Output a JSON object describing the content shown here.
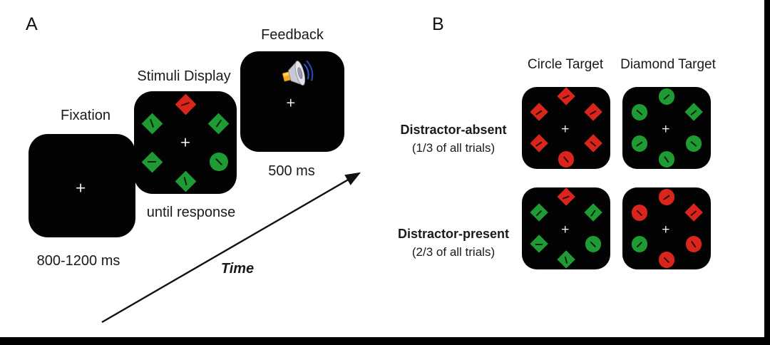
{
  "colors": {
    "red": "#da251d",
    "green": "#1f9b34"
  },
  "cross": "+",
  "panel_a": {
    "label": "A",
    "fixation": {
      "title": "Fixation",
      "caption": "800-1200 ms"
    },
    "stimuli": {
      "title": "Stimuli Display",
      "caption": "until response"
    },
    "feedback": {
      "title": "Feedback",
      "caption": "500 ms"
    },
    "time_label": "Time"
  },
  "panel_b": {
    "label": "B",
    "columns": [
      "Circle Target",
      "Diamond Target"
    ],
    "rows": [
      {
        "label": "Distractor-absent",
        "sublabel": "(1/3 of all trials)"
      },
      {
        "label": "Distractor-present",
        "sublabel": "(2/3 of all trials)"
      }
    ]
  },
  "displays": {
    "a_stimuli": [
      {
        "pos": "top",
        "shape": "diamond",
        "color": "red",
        "tilt": -20
      },
      {
        "pos": "ul",
        "shape": "diamond",
        "color": "green",
        "tilt": 70
      },
      {
        "pos": "ur",
        "shape": "diamond",
        "color": "green",
        "tilt": -55
      },
      {
        "pos": "ll",
        "shape": "diamond",
        "color": "green",
        "tilt": 0
      },
      {
        "pos": "lr",
        "shape": "circle",
        "color": "green",
        "tilt": 45
      },
      {
        "pos": "bottom",
        "shape": "diamond",
        "color": "green",
        "tilt": 75
      }
    ],
    "b_circle_absent": [
      {
        "pos": "top",
        "shape": "diamond",
        "color": "red",
        "tilt": -25
      },
      {
        "pos": "ul",
        "shape": "diamond",
        "color": "red",
        "tilt": -35
      },
      {
        "pos": "ur",
        "shape": "diamond",
        "color": "red",
        "tilt": -30
      },
      {
        "pos": "ll",
        "shape": "diamond",
        "color": "red",
        "tilt": -35
      },
      {
        "pos": "lr",
        "shape": "diamond",
        "color": "red",
        "tilt": 40
      },
      {
        "pos": "bottom",
        "shape": "circle",
        "color": "red",
        "tilt": 50
      }
    ],
    "b_diamond_absent": [
      {
        "pos": "top",
        "shape": "circle",
        "color": "green",
        "tilt": -40
      },
      {
        "pos": "ul",
        "shape": "circle",
        "color": "green",
        "tilt": 40
      },
      {
        "pos": "ur",
        "shape": "diamond",
        "color": "green",
        "tilt": -40
      },
      {
        "pos": "ll",
        "shape": "circle",
        "color": "green",
        "tilt": -35
      },
      {
        "pos": "lr",
        "shape": "circle",
        "color": "green",
        "tilt": 40
      },
      {
        "pos": "bottom",
        "shape": "circle",
        "color": "green",
        "tilt": 55
      }
    ],
    "b_circle_present": [
      {
        "pos": "top",
        "shape": "diamond",
        "color": "red",
        "tilt": -20
      },
      {
        "pos": "ul",
        "shape": "diamond",
        "color": "green",
        "tilt": -45
      },
      {
        "pos": "ur",
        "shape": "diamond",
        "color": "green",
        "tilt": -55
      },
      {
        "pos": "ll",
        "shape": "diamond",
        "color": "green",
        "tilt": 0
      },
      {
        "pos": "lr",
        "shape": "circle",
        "color": "green",
        "tilt": 45
      },
      {
        "pos": "bottom",
        "shape": "diamond",
        "color": "green",
        "tilt": 75
      }
    ],
    "b_diamond_present": [
      {
        "pos": "top",
        "shape": "circle",
        "color": "red",
        "tilt": -35
      },
      {
        "pos": "ul",
        "shape": "circle",
        "color": "red",
        "tilt": 45
      },
      {
        "pos": "ur",
        "shape": "diamond",
        "color": "red",
        "tilt": -40
      },
      {
        "pos": "ll",
        "shape": "circle",
        "color": "green",
        "tilt": -45
      },
      {
        "pos": "lr",
        "shape": "circle",
        "color": "red",
        "tilt": 55
      },
      {
        "pos": "bottom",
        "shape": "circle",
        "color": "red",
        "tilt": 45
      }
    ]
  }
}
